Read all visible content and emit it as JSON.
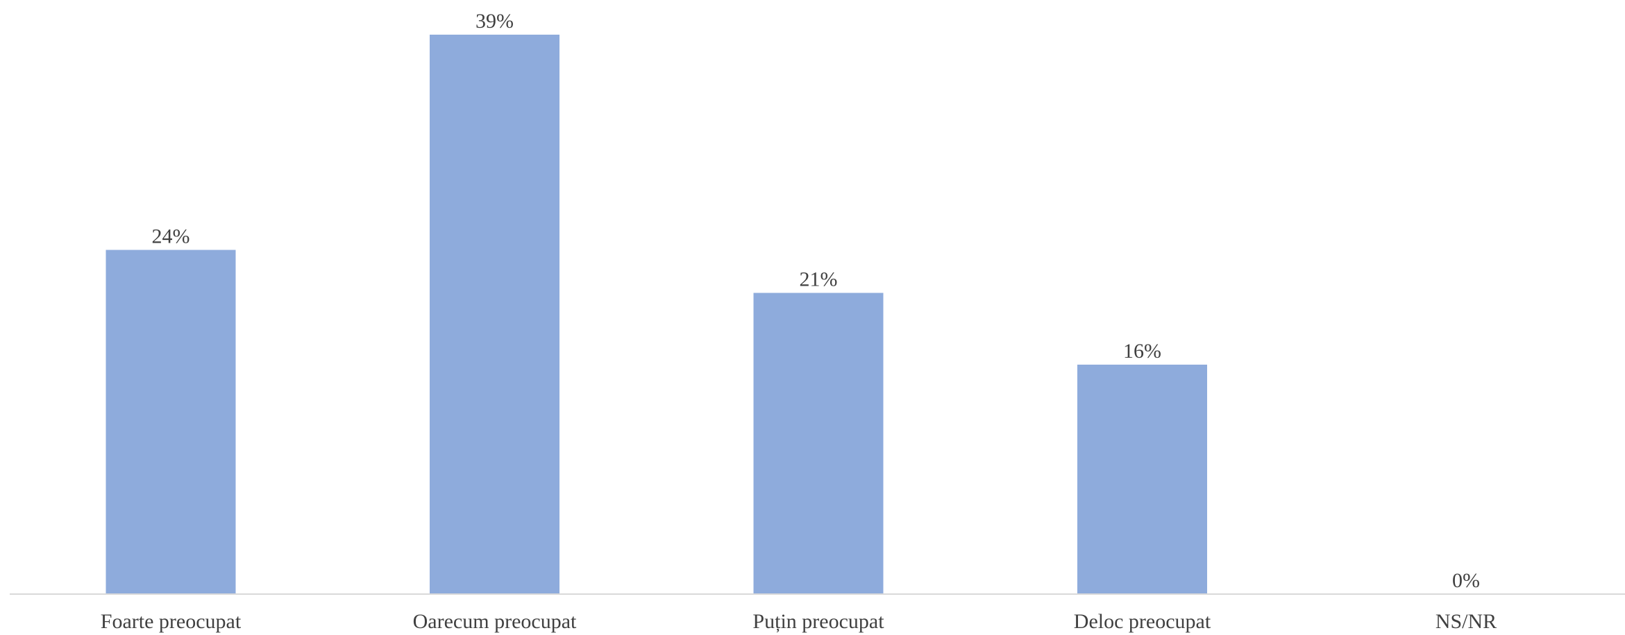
{
  "chart_data": {
    "type": "bar",
    "categories": [
      "Foarte preocupat",
      "Oarecum preocupat",
      "Puțin preocupat",
      "Deloc preocupat",
      "NS/NR"
    ],
    "values": [
      24,
      39,
      21,
      16,
      0
    ],
    "value_labels": [
      "24%",
      "39%",
      "21%",
      "16%",
      "0%"
    ],
    "title": "",
    "xlabel": "",
    "ylabel": "",
    "ylim": [
      0,
      39
    ],
    "grid": false,
    "legend": "none",
    "colors": {
      "bar": "#8eabdc",
      "axis": "#d9d9d9",
      "text": "#404040"
    }
  }
}
